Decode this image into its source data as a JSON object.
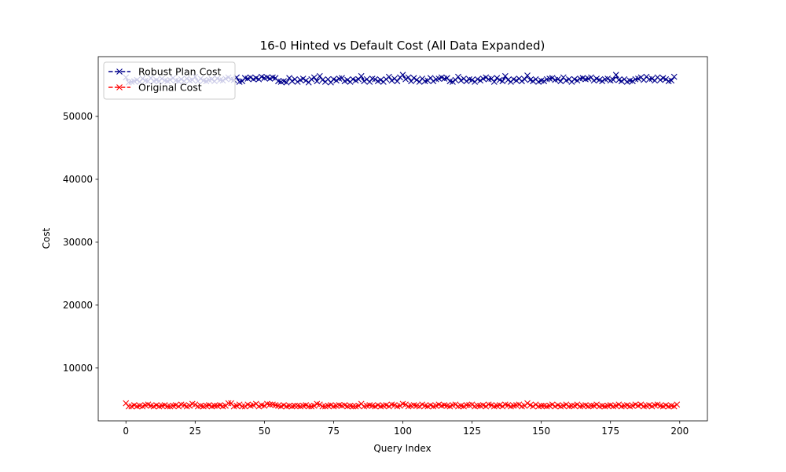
{
  "chart_data": {
    "type": "line",
    "title": "16-0 Hinted vs Default Cost (All Data Expanded)",
    "xlabel": "Query Index",
    "ylabel": "Cost",
    "xlim": [
      -10,
      210
    ],
    "ylim": [
      1600,
      59500
    ],
    "x_ticks": [
      0,
      25,
      50,
      75,
      100,
      125,
      150,
      175,
      200
    ],
    "y_ticks": [
      10000,
      20000,
      30000,
      40000,
      50000
    ],
    "legend_position": "top-left",
    "grid": false,
    "series": [
      {
        "name": "Robust Plan Cost",
        "color": "#00008b",
        "marker": "x",
        "linestyle": "dashed",
        "values": [
          56200,
          55400,
          55500,
          55600,
          55800,
          55500,
          56000,
          55700,
          55600,
          56100,
          55600,
          55800,
          55600,
          56000,
          55700,
          55600,
          55800,
          56100,
          55700,
          55600,
          55900,
          55600,
          56000,
          55700,
          55800,
          56300,
          55600,
          56000,
          55700,
          55600,
          55800,
          55900,
          55600,
          56000,
          55800,
          55700,
          56000,
          56200,
          55900,
          55800,
          56200,
          55500,
          55600,
          56100,
          56000,
          56200,
          55900,
          56100,
          55900,
          56300,
          56100,
          56200,
          56000,
          56200,
          56100,
          55600,
          55500,
          55600,
          55400,
          56100,
          55600,
          55900,
          55500,
          55800,
          56000,
          55700,
          55400,
          55900,
          56200,
          55600,
          56400,
          55800,
          55500,
          55900,
          55400,
          55900,
          55700,
          56000,
          56100,
          55600,
          55800,
          55500,
          55900,
          55700,
          55900,
          56400,
          55600,
          55900,
          55500,
          56000,
          55900,
          55600,
          55800,
          55500,
          55900,
          56300,
          55700,
          56000,
          55600,
          56200,
          56600,
          55900,
          56200,
          55600,
          56100,
          55800,
          55500,
          56000,
          55600,
          55700,
          56100,
          55600,
          55900,
          56000,
          56200,
          56000,
          56100,
          55600,
          55500,
          55800,
          56300,
          55700,
          56000,
          55600,
          55900,
          55800,
          55500,
          55900,
          55700,
          56000,
          56200,
          55900,
          56000,
          55500,
          56100,
          55800,
          55600,
          56400,
          55800,
          55500,
          55900,
          55700,
          56000,
          55600,
          55900,
          56500,
          55800,
          55600,
          55900,
          55500,
          55700,
          55600,
          55900,
          56000,
          56100,
          55800,
          55900,
          55600,
          56200,
          55700,
          55900,
          55500,
          55900,
          55700,
          56000,
          56100,
          55900,
          56000,
          56200,
          55700,
          56000,
          55800,
          55600,
          55900,
          56000,
          55700,
          55800,
          56600,
          55800,
          55600,
          55900,
          55500,
          55700,
          55600,
          55900,
          56000,
          56200,
          55800,
          56300,
          55900,
          56000,
          55700,
          56200,
          55800,
          56100,
          55900,
          55600,
          55700,
          56300
        ]
      },
      {
        "name": "Original Cost",
        "color": "#ff0000",
        "marker": "x",
        "linestyle": "dashed",
        "values": [
          4400,
          3900,
          3900,
          4100,
          3900,
          4000,
          3900,
          4100,
          4200,
          4000,
          3900,
          4100,
          3900,
          4000,
          4100,
          3900,
          3900,
          4000,
          4100,
          3900,
          4200,
          4100,
          3900,
          4000,
          4300,
          4200,
          3900,
          4000,
          3900,
          4000,
          4100,
          3900,
          4000,
          4000,
          4100,
          3900,
          4000,
          4400,
          4400,
          3900,
          4000,
          4200,
          3900,
          3900,
          4200,
          4000,
          4100,
          4300,
          3900,
          4100,
          4000,
          4300,
          4200,
          4200,
          4100,
          4000,
          3900,
          4100,
          3900,
          4000,
          3900,
          4000,
          4000,
          3900,
          4000,
          4100,
          3900,
          3900,
          4000,
          4300,
          4200,
          3900,
          3900,
          4000,
          4100,
          3900,
          4000,
          4100,
          4000,
          4100,
          3900,
          4000,
          3900,
          3900,
          4000,
          4300,
          3900,
          4000,
          4100,
          4000,
          3900,
          4100,
          3900,
          4000,
          4100,
          3900,
          4200,
          4100,
          3900,
          4000,
          4300,
          4200,
          3900,
          4000,
          4100,
          4000,
          3900,
          4200,
          4000,
          3900,
          4100,
          3900,
          4000,
          4200,
          4000,
          4100,
          4000,
          3900,
          4100,
          4200,
          3900,
          4000,
          3900,
          4100,
          4100,
          4200,
          3900,
          4000,
          4000,
          4100,
          3900,
          4200,
          4100,
          3900,
          4000,
          4100,
          3900,
          4200,
          4100,
          3900,
          4000,
          4100,
          4200,
          3900,
          4000,
          4400,
          4100,
          3900,
          4200,
          3900,
          4000,
          4000,
          3900,
          4000,
          4200,
          3900,
          4100,
          3900,
          4000,
          4200,
          3900,
          4000,
          4000,
          4200,
          3900,
          4000,
          4100,
          3900,
          4000,
          4000,
          4200,
          3900,
          4000,
          3900,
          4000,
          4100,
          3900,
          4000,
          4200,
          3900,
          4000,
          4100,
          3900,
          4000,
          4200,
          4000,
          4200,
          3900,
          4000,
          4100,
          3900,
          4100,
          4200,
          4000,
          3900,
          4100,
          3900,
          4000,
          3900,
          4200
        ]
      }
    ]
  }
}
